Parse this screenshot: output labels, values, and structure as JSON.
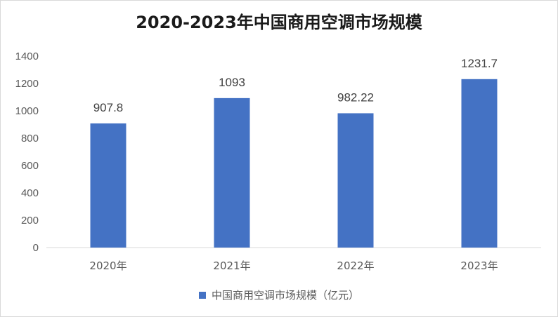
{
  "chart_data": {
    "type": "bar",
    "title": "2020-2023年中国商用空调市场规模",
    "categories": [
      "2020年",
      "2021年",
      "2022年",
      "2023年"
    ],
    "series": [
      {
        "name": "中国商用空调市场规模（亿元）",
        "values": [
          907.8,
          1093,
          982.22,
          1231.7
        ],
        "color": "#4472c4"
      }
    ],
    "data_labels": [
      "907.8",
      "1093",
      "982.22",
      "1231.7"
    ],
    "ylim": [
      0,
      1400
    ],
    "yticks": [
      0,
      200,
      400,
      600,
      800,
      1000,
      1200,
      1400
    ],
    "grid": false,
    "legend_position": "bottom",
    "xlabel": "",
    "ylabel": ""
  }
}
